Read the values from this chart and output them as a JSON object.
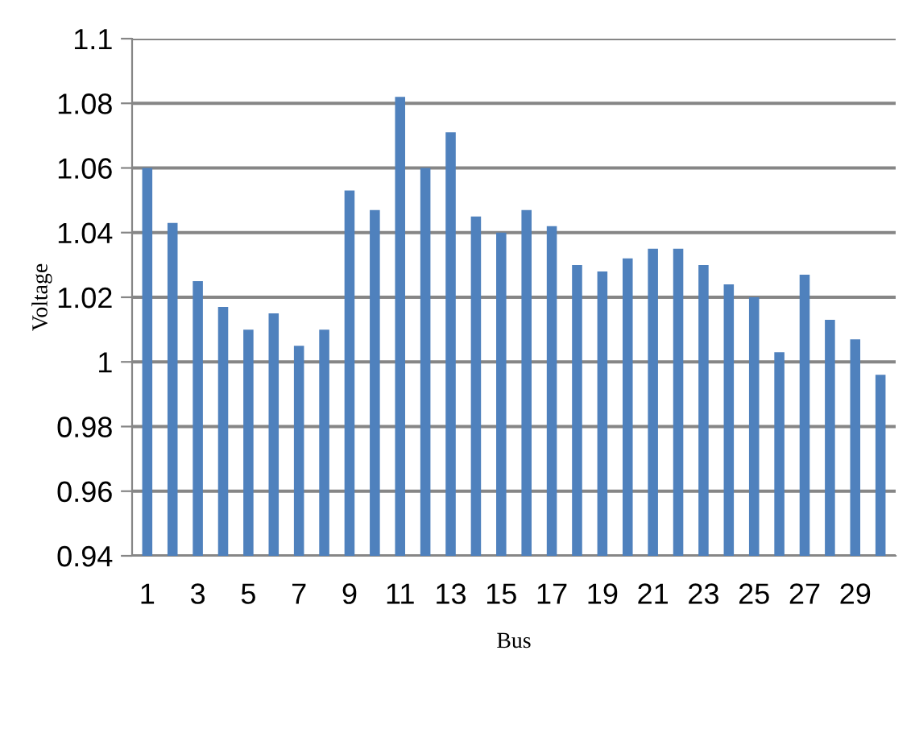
{
  "chart_data": {
    "type": "bar",
    "xlabel": "Bus",
    "ylabel": "Voltage",
    "categories": [
      "1",
      null,
      "3",
      null,
      "5",
      null,
      "7",
      null,
      "9",
      null,
      "11",
      null,
      "13",
      null,
      "15",
      null,
      "17",
      null,
      "19",
      null,
      "21",
      null,
      "23",
      null,
      "25",
      null,
      "27",
      null,
      "29",
      null
    ],
    "values": [
      1.06,
      1.043,
      1.025,
      1.017,
      1.01,
      1.015,
      1.005,
      1.01,
      1.053,
      1.047,
      1.082,
      1.06,
      1.071,
      1.045,
      1.04,
      1.047,
      1.042,
      1.03,
      1.028,
      1.032,
      1.035,
      1.035,
      1.03,
      1.024,
      1.02,
      1.003,
      1.027,
      1.013,
      1.007,
      0.996
    ],
    "color": "#4f81bd",
    "ylim": [
      0.94,
      1.1
    ],
    "yticks": [
      0.94,
      0.96,
      0.98,
      1,
      1.02,
      1.04,
      1.06,
      1.08,
      1.1
    ],
    "grid": "y"
  }
}
